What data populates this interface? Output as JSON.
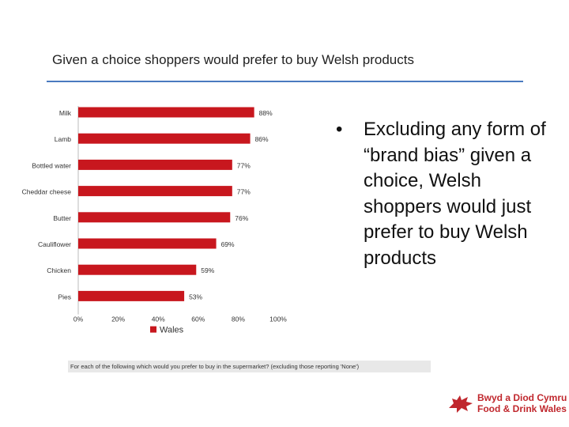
{
  "slide": {
    "title": "Given a choice shoppers would prefer to buy Welsh products",
    "bullet": "Excluding any form of “brand bias” given a choice, Welsh shoppers would just prefer to buy Welsh products",
    "footnote": "For each of the following which would you prefer to buy in the supermarket? (excluding those reporting 'None')"
  },
  "logo": {
    "line1": "Bwyd a Diod Cymru",
    "line2": "Food & Drink Wales"
  },
  "colors": {
    "bar": "#c8171e",
    "rule": "#4a7abf",
    "logo": "#c0272d"
  },
  "chart_data": {
    "type": "bar",
    "orientation": "horizontal",
    "categories": [
      "Milk",
      "Lamb",
      "Bottled water",
      "Cheddar cheese",
      "Butter",
      "Cauliflower",
      "Chicken",
      "Pies"
    ],
    "series": [
      {
        "name": "Wales",
        "values": [
          88,
          86,
          77,
          77,
          76,
          69,
          59,
          53
        ]
      }
    ],
    "value_labels": [
      "88%",
      "86%",
      "77%",
      "77%",
      "76%",
      "69%",
      "59%",
      "53%"
    ],
    "xticks": [
      "0%",
      "20%",
      "40%",
      "60%",
      "80%",
      "100%"
    ],
    "xlim": [
      0,
      100
    ],
    "legend": "bottom",
    "grid": false
  }
}
